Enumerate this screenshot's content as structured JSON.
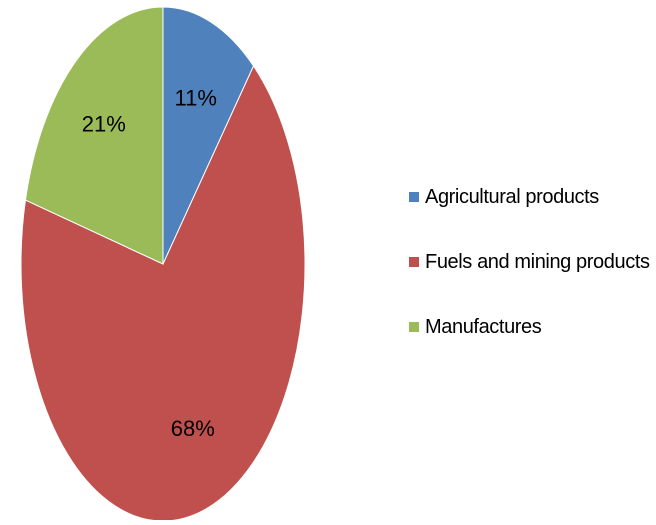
{
  "chart_data": {
    "type": "pie",
    "title": "",
    "legend_position": "right",
    "slices": [
      {
        "label": "Agricultural products",
        "value": 11,
        "display": "11%",
        "color": "#4f81bd"
      },
      {
        "label": "Fuels and mining products",
        "value": 68,
        "display": "68%",
        "color": "#c0504d"
      },
      {
        "label": "Manufactures",
        "value": 21,
        "display": "21%",
        "color": "#9bbb59"
      }
    ]
  }
}
